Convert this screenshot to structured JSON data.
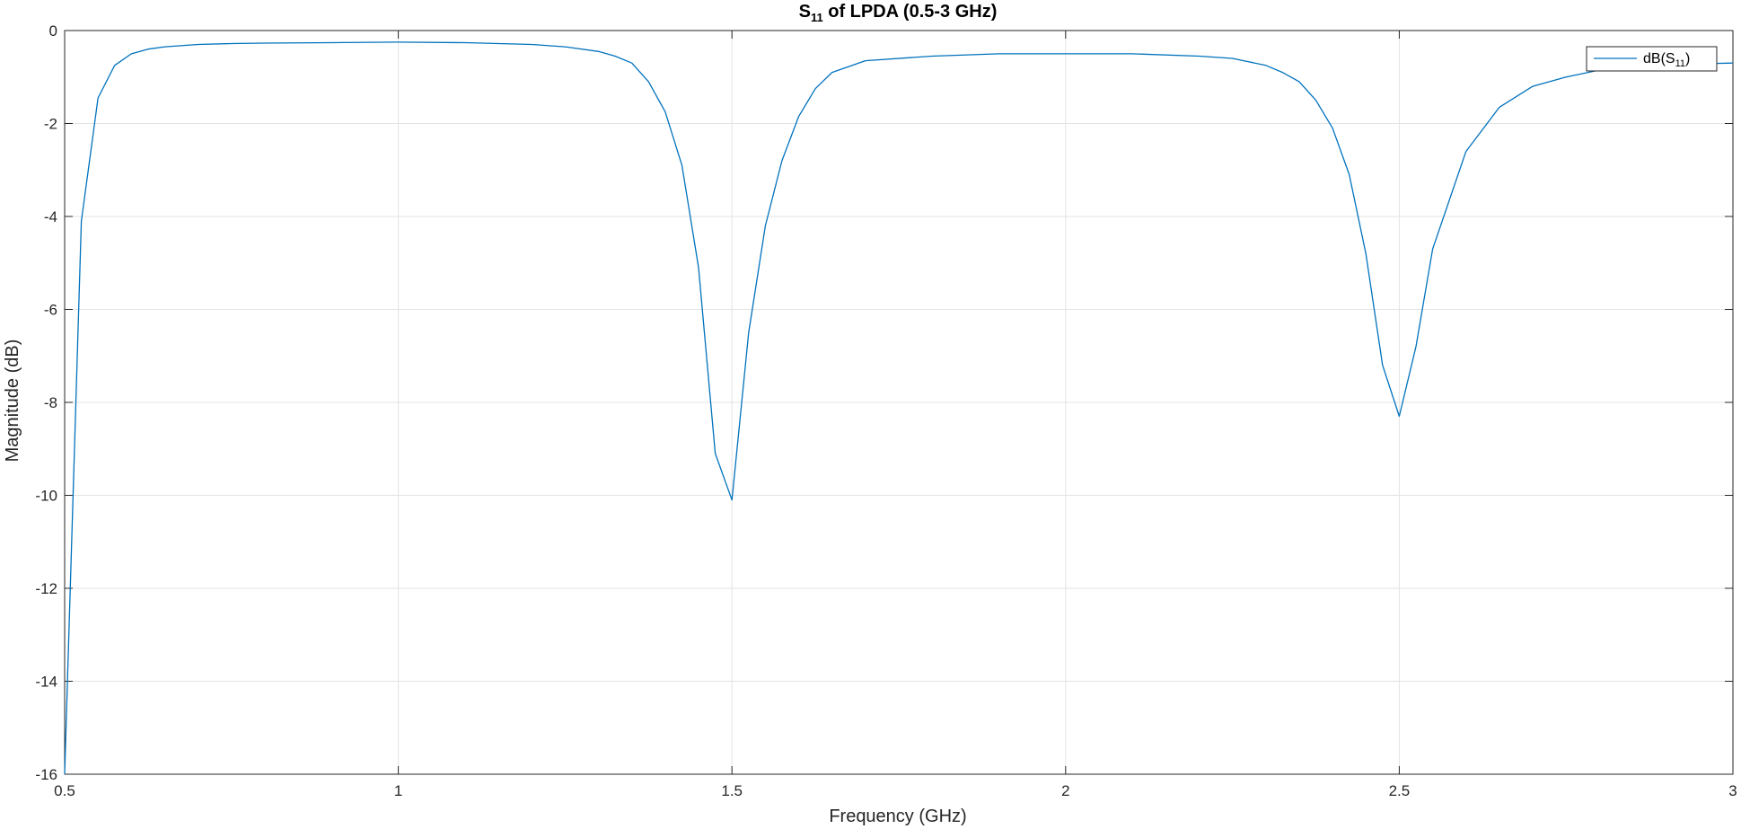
{
  "chart_data": {
    "type": "line",
    "title": "S11 of LPDA (0.5-3 GHz)",
    "title_parts": {
      "main": "S",
      "sub": "11",
      "rest": " of LPDA (0.5-3 GHz)"
    },
    "xlabel": "Frequency (GHz)",
    "ylabel": "Magnitude (dB)",
    "xlim": [
      0.5,
      3
    ],
    "ylim": [
      -16,
      0
    ],
    "xticks": [
      0.5,
      1,
      1.5,
      2,
      2.5,
      3
    ],
    "xtick_labels": [
      "0.5",
      "1",
      "1.5",
      "2",
      "2.5",
      "3"
    ],
    "yticks": [
      0,
      -2,
      -4,
      -6,
      -8,
      -10,
      -12,
      -14,
      -16
    ],
    "ytick_labels": [
      "0",
      "-2",
      "-4",
      "-6",
      "-8",
      "-10",
      "-12",
      "-14",
      "-16"
    ],
    "grid": true,
    "legend_position": "top-right",
    "legend": {
      "main": "dB(S",
      "sub": "11",
      "close": ")"
    },
    "series": [
      {
        "name": "dB(S11)",
        "color": "#0072BD",
        "x": [
          0.5,
          0.525,
          0.55,
          0.575,
          0.6,
          0.625,
          0.65,
          0.7,
          0.75,
          0.8,
          0.9,
          1.0,
          1.1,
          1.2,
          1.25,
          1.3,
          1.325,
          1.35,
          1.375,
          1.4,
          1.425,
          1.45,
          1.475,
          1.5,
          1.525,
          1.55,
          1.575,
          1.6,
          1.625,
          1.65,
          1.7,
          1.8,
          1.9,
          2.0,
          2.1,
          2.2,
          2.25,
          2.3,
          2.325,
          2.35,
          2.375,
          2.4,
          2.425,
          2.45,
          2.475,
          2.5,
          2.525,
          2.55,
          2.6,
          2.65,
          2.7,
          2.75,
          2.8,
          2.85,
          2.9,
          3.0
        ],
        "y": [
          -16.0,
          -4.1,
          -1.45,
          -0.75,
          -0.5,
          -0.4,
          -0.35,
          -0.3,
          -0.28,
          -0.27,
          -0.26,
          -0.25,
          -0.26,
          -0.3,
          -0.35,
          -0.45,
          -0.55,
          -0.7,
          -1.1,
          -1.75,
          -2.9,
          -5.1,
          -9.1,
          -10.1,
          -6.5,
          -4.2,
          -2.8,
          -1.85,
          -1.25,
          -0.9,
          -0.65,
          -0.55,
          -0.5,
          -0.5,
          -0.5,
          -0.55,
          -0.6,
          -0.75,
          -0.9,
          -1.1,
          -1.5,
          -2.1,
          -3.1,
          -4.8,
          -7.2,
          -8.3,
          -6.8,
          -4.7,
          -2.6,
          -1.65,
          -1.2,
          -1.0,
          -0.85,
          -0.78,
          -0.73,
          -0.7
        ]
      }
    ]
  }
}
